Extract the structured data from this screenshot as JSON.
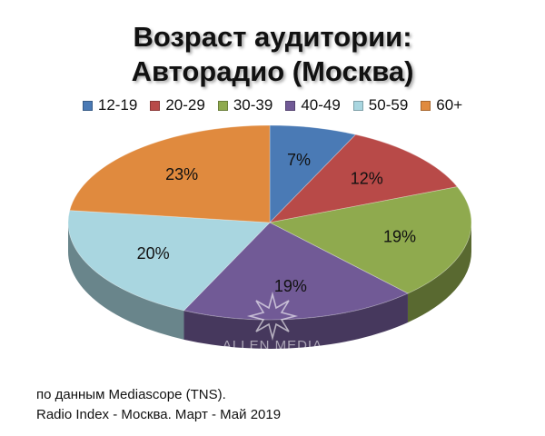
{
  "chart_data": {
    "type": "pie",
    "title_line1": "Возраст аудитории:",
    "title_line2": "Авторадио (Москва)",
    "categories": [
      "12-19",
      "20-29",
      "30-39",
      "40-49",
      "50-59",
      "60+"
    ],
    "values": [
      7,
      12,
      19,
      19,
      20,
      23
    ],
    "value_labels": [
      "7%",
      "12%",
      "19%",
      "19%",
      "20%",
      "23%"
    ],
    "colors": [
      "#4A7AB5",
      "#B84A48",
      "#8FAA4E",
      "#715A96",
      "#A9D6E0",
      "#E08A3E"
    ],
    "legend_position": "top"
  },
  "watermark": {
    "text": "ALLEN MEDIA",
    "icon": "star-burst-icon"
  },
  "source": {
    "line1": "по данным Mediascope (TNS).",
    "line2": "Radio Index - Москва. Март - Май 2019"
  }
}
